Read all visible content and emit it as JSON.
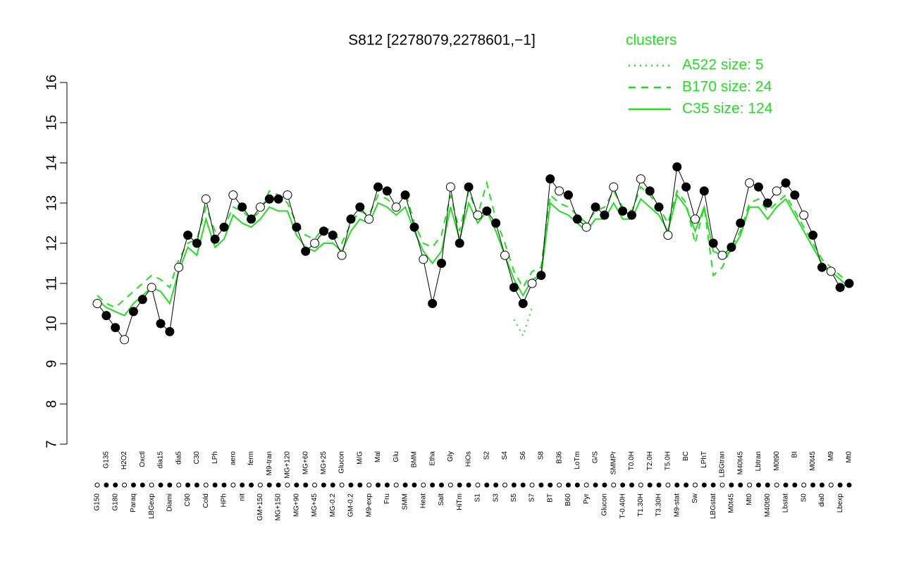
{
  "chart_data": {
    "type": "line",
    "title": "S812 [2278079,2278601,−1]",
    "legend_title": "clusters",
    "legend_color": "#22dd22",
    "marker_color": "#000000",
    "ylim": [
      7,
      16
    ],
    "yticks": [
      7,
      8,
      9,
      10,
      11,
      12,
      13,
      14,
      15,
      16
    ],
    "categories": [
      "G150",
      "G135",
      "G180",
      "H2O2",
      "Paraq",
      "Oxctl",
      "LBGexp",
      "dia15",
      "Diami",
      "dia5",
      "C90",
      "C30",
      "Cold",
      "LPh",
      "HPh",
      "aero",
      "nit",
      "ferm",
      "GM+150",
      "M9-tran",
      "MG+150",
      "MG+120",
      "MG+90",
      "MG+60",
      "MG+45",
      "MG+25",
      "MG-0.2",
      "Glucon",
      "GM-0.2",
      "M/G",
      "M9-exp",
      "Mal",
      "Fru",
      "Glu",
      "SMM",
      "BMM",
      "Heat",
      "Etha",
      "Salt",
      "Gly",
      "HiTm",
      "HiOs",
      "S1",
      "S2",
      "S3",
      "S4",
      "S5",
      "S6",
      "S7",
      "S8",
      "BT",
      "B36",
      "B60",
      "LoTm",
      "Pyr",
      "G/S",
      "Glucon",
      "SMMPr",
      "T-0.40H",
      "T0.0H",
      "T1.30H",
      "T2.0H",
      "T3.30H",
      "T5.0H",
      "M9-stat",
      "BC",
      "Sw",
      "LPhT",
      "LBGstat",
      "LBGtran",
      "M0t45",
      "M40t45",
      "Mt0",
      "Lbtran",
      "M40t90",
      "M0t90",
      "Lbstat",
      "BI",
      "S0",
      "M0t45",
      "dia0",
      "M9",
      "Lbexp",
      "Mt0"
    ],
    "values": [
      10.5,
      10.2,
      9.9,
      9.6,
      10.3,
      10.6,
      10.9,
      10.0,
      9.8,
      11.4,
      12.2,
      12.0,
      13.1,
      12.1,
      12.4,
      13.2,
      12.9,
      12.6,
      12.9,
      13.1,
      13.1,
      13.2,
      12.4,
      11.8,
      12.0,
      12.3,
      12.2,
      11.7,
      12.6,
      12.9,
      12.6,
      13.4,
      13.3,
      12.9,
      13.2,
      12.4,
      11.6,
      10.5,
      11.5,
      13.4,
      12.0,
      13.4,
      12.7,
      12.8,
      12.5,
      11.7,
      10.9,
      10.5,
      11.0,
      11.2,
      13.6,
      13.3,
      13.2,
      12.6,
      12.4,
      12.9,
      12.7,
      13.4,
      12.8,
      12.7,
      13.6,
      13.3,
      12.9,
      12.2,
      13.9,
      13.4,
      12.6,
      13.3,
      12.0,
      11.7,
      11.9,
      12.5,
      13.5,
      13.4,
      13.0,
      13.3,
      13.5,
      13.2,
      12.7,
      12.2,
      11.4,
      11.3,
      10.9,
      11.0
    ],
    "series": [
      {
        "name": "A522 size: 5",
        "color": "#22dd22",
        "dash": "2 6",
        "values": [
          null,
          null,
          null,
          null,
          null,
          null,
          null,
          null,
          null,
          null,
          null,
          null,
          null,
          null,
          null,
          null,
          null,
          null,
          null,
          null,
          null,
          null,
          null,
          null,
          null,
          null,
          null,
          null,
          null,
          null,
          null,
          null,
          null,
          null,
          null,
          null,
          null,
          null,
          null,
          null,
          null,
          null,
          null,
          null,
          null,
          null,
          10.1,
          9.7,
          10.4,
          null,
          null,
          null,
          null,
          null,
          null,
          null,
          null,
          null,
          null,
          null,
          null,
          null,
          null,
          null,
          null,
          null,
          null,
          null,
          null,
          null,
          null,
          null,
          null,
          null,
          null,
          null,
          null,
          null,
          null,
          null,
          null,
          null,
          null,
          null
        ]
      },
      {
        "name": "B170 size: 24",
        "color": "#22dd22",
        "dash": "10 8",
        "values": [
          10.7,
          10.5,
          10.4,
          10.6,
          10.8,
          11.0,
          11.2,
          11.1,
          10.9,
          11.6,
          12.0,
          12.1,
          12.9,
          12.3,
          12.4,
          12.9,
          12.8,
          12.6,
          12.8,
          13.3,
          13.2,
          13.0,
          12.5,
          12.2,
          12.1,
          12.4,
          12.3,
          12.0,
          12.5,
          12.8,
          12.7,
          13.2,
          13.1,
          12.9,
          13.3,
          12.5,
          12.0,
          11.9,
          12.2,
          13.2,
          12.3,
          13.3,
          12.7,
          13.5,
          12.6,
          12.0,
          11.3,
          10.9,
          11.3,
          11.4,
          13.2,
          13.0,
          12.9,
          12.7,
          12.5,
          12.8,
          12.9,
          13.3,
          12.9,
          12.8,
          13.4,
          13.2,
          12.9,
          12.5,
          13.3,
          13.0,
          12.0,
          12.9,
          11.2,
          11.4,
          11.9,
          12.3,
          13.0,
          13.1,
          12.8,
          13.0,
          13.2,
          12.8,
          12.4,
          12.0,
          11.6,
          11.4,
          11.2,
          11.0
        ]
      },
      {
        "name": "C35 size: 124",
        "color": "#22dd22",
        "dash": "",
        "values": [
          10.6,
          10.4,
          10.3,
          10.2,
          10.5,
          10.7,
          10.9,
          10.8,
          10.5,
          11.3,
          11.9,
          11.7,
          12.6,
          11.9,
          12.1,
          12.7,
          12.5,
          12.4,
          12.6,
          12.9,
          12.8,
          12.8,
          12.2,
          11.9,
          11.8,
          12.0,
          12.0,
          11.8,
          12.3,
          12.6,
          12.5,
          13.0,
          12.9,
          12.7,
          12.9,
          12.3,
          11.8,
          11.5,
          11.8,
          12.9,
          12.1,
          13.0,
          12.5,
          12.8,
          12.3,
          11.7,
          11.1,
          10.7,
          11.1,
          11.2,
          13.0,
          12.8,
          12.7,
          12.5,
          12.3,
          12.6,
          12.6,
          13.0,
          12.6,
          12.6,
          13.1,
          12.9,
          12.7,
          12.3,
          13.2,
          12.9,
          12.3,
          12.9,
          11.8,
          11.7,
          11.8,
          12.2,
          12.9,
          12.9,
          12.6,
          12.9,
          13.1,
          12.7,
          12.3,
          11.9,
          11.5,
          11.3,
          11.1,
          10.9
        ]
      }
    ]
  }
}
